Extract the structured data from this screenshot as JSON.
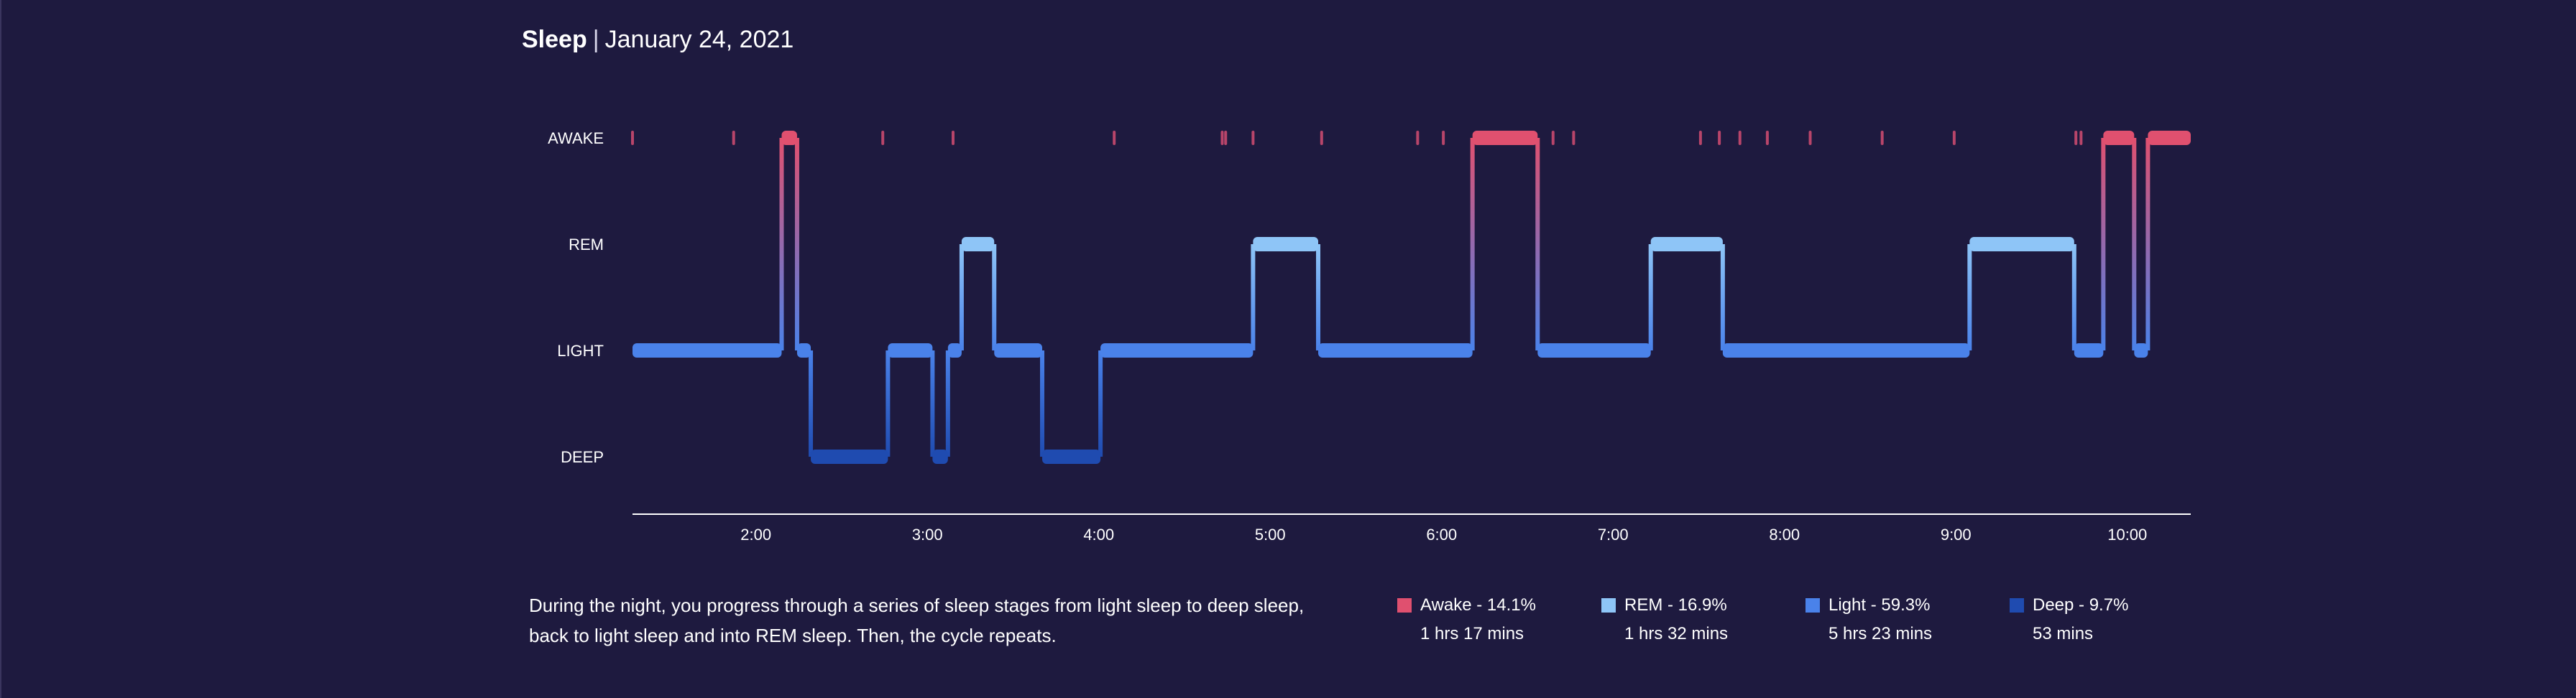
{
  "header": {
    "app": "Sleep",
    "separator": "|",
    "date": "January 24, 2021"
  },
  "summary": "During the night, you progress through a series of sleep stages from light sleep to deep sleep, back to light sleep and into REM sleep. Then, the cycle repeats.",
  "legend": [
    {
      "label": "Awake - 14.1%",
      "duration": "1 hrs 17 mins",
      "color": "#e0506f"
    },
    {
      "label": "REM - 16.9%",
      "duration": "1 hrs 32 mins",
      "color": "#8ec5f7"
    },
    {
      "label": "Light - 59.3%",
      "duration": "5 hrs 23 mins",
      "color": "#4a82ea"
    },
    {
      "label": "Deep - 9.7%",
      "duration": "53 mins",
      "color": "#1f4bb0"
    }
  ],
  "chart_data": {
    "type": "step-area",
    "y_categories": [
      "AWAKE",
      "REM",
      "LIGHT",
      "DEEP"
    ],
    "x_ticks": [
      "2:00",
      "3:00",
      "4:00",
      "5:00",
      "6:00",
      "7:00",
      "8:00",
      "9:00",
      "10:00"
    ],
    "x_tick_hours": [
      2,
      3,
      4,
      5,
      6,
      7,
      8,
      9,
      10
    ],
    "x_range_hours": [
      1.28,
      10.37
    ],
    "colors": {
      "AWAKE": "#e0506f",
      "REM": "#8ec5f7",
      "LIGHT": "#4a82ea",
      "DEEP": "#1f4bb0"
    },
    "segments": [
      {
        "stage": "LIGHT",
        "start": 1.28,
        "end": 2.15
      },
      {
        "stage": "AWAKE",
        "start": 2.15,
        "end": 2.24
      },
      {
        "stage": "LIGHT",
        "start": 2.24,
        "end": 2.32
      },
      {
        "stage": "DEEP",
        "start": 2.32,
        "end": 2.77
      },
      {
        "stage": "LIGHT",
        "start": 2.77,
        "end": 3.03
      },
      {
        "stage": "DEEP",
        "start": 3.03,
        "end": 3.12
      },
      {
        "stage": "LIGHT",
        "start": 3.12,
        "end": 3.2
      },
      {
        "stage": "REM",
        "start": 3.2,
        "end": 3.39
      },
      {
        "stage": "LIGHT",
        "start": 3.39,
        "end": 3.67
      },
      {
        "stage": "DEEP",
        "start": 3.67,
        "end": 4.01
      },
      {
        "stage": "LIGHT",
        "start": 4.01,
        "end": 4.9
      },
      {
        "stage": "REM",
        "start": 4.9,
        "end": 5.28
      },
      {
        "stage": "LIGHT",
        "start": 5.28,
        "end": 6.18
      },
      {
        "stage": "AWAKE",
        "start": 6.18,
        "end": 6.56
      },
      {
        "stage": "LIGHT",
        "start": 6.56,
        "end": 7.22
      },
      {
        "stage": "REM",
        "start": 7.22,
        "end": 7.64
      },
      {
        "stage": "LIGHT",
        "start": 7.64,
        "end": 9.08
      },
      {
        "stage": "REM",
        "start": 9.08,
        "end": 9.69
      },
      {
        "stage": "LIGHT",
        "start": 9.69,
        "end": 9.86
      },
      {
        "stage": "AWAKE",
        "start": 9.86,
        "end": 10.04
      },
      {
        "stage": "LIGHT",
        "start": 10.04,
        "end": 10.12
      },
      {
        "stage": "AWAKE",
        "start": 10.12,
        "end": 10.37
      }
    ],
    "brief_awakenings": [
      1.28,
      1.87,
      2.74,
      3.15,
      4.09,
      4.72,
      4.74,
      4.9,
      5.3,
      5.86,
      6.01,
      6.65,
      6.77,
      7.51,
      7.62,
      7.74,
      7.9,
      8.15,
      8.57,
      8.99,
      9.7,
      9.73
    ]
  }
}
